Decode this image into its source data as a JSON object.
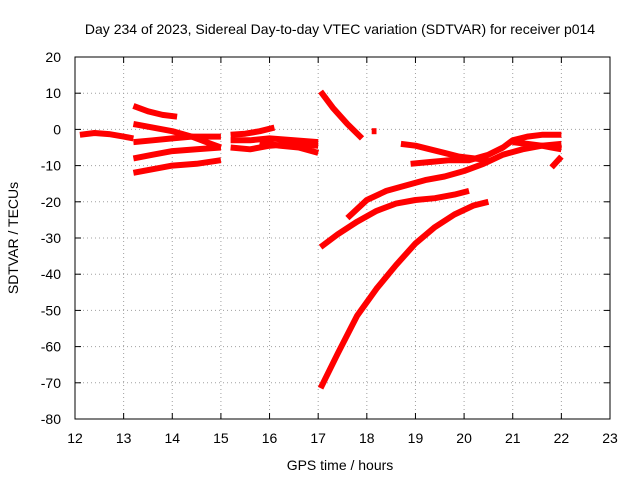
{
  "chart_data": {
    "type": "line",
    "title": "Day 234 of 2023, Sidereal Day-to-day VTEC variation (SDTVAR) for receiver p014",
    "xlabel": "GPS time / hours",
    "ylabel": "SDTVAR / TECUs",
    "xlim": [
      12,
      23
    ],
    "ylim": [
      -80,
      20
    ],
    "xticks": [
      12,
      13,
      14,
      15,
      16,
      17,
      18,
      19,
      20,
      21,
      22,
      23
    ],
    "yticks": [
      20,
      10,
      0,
      -10,
      -20,
      -30,
      -40,
      -50,
      -60,
      -70,
      -80
    ],
    "grid": true,
    "color": "#ff0000",
    "series": [
      {
        "x": [
          12.1,
          12.4,
          12.7,
          13.0,
          13.2
        ],
        "y": [
          -1.5,
          -1.0,
          -1.3,
          -2.0,
          -2.5
        ]
      },
      {
        "x": [
          13.2,
          13.5,
          13.8,
          14.1
        ],
        "y": [
          6.5,
          5.0,
          4.0,
          3.5
        ]
      },
      {
        "x": [
          13.2,
          13.6,
          14.0,
          14.4,
          14.8,
          15.0
        ],
        "y": [
          1.5,
          0.5,
          -0.5,
          -2.0,
          -4.0,
          -5.0
        ]
      },
      {
        "x": [
          13.2,
          13.6,
          14.0,
          14.4,
          15.0
        ],
        "y": [
          -3.5,
          -3.0,
          -2.5,
          -2.0,
          -2.0
        ]
      },
      {
        "x": [
          13.2,
          13.6,
          14.0,
          14.5,
          15.0
        ],
        "y": [
          -8.0,
          -7.0,
          -6.0,
          -5.5,
          -5.0
        ]
      },
      {
        "x": [
          13.2,
          13.6,
          14.0,
          14.5,
          15.0
        ],
        "y": [
          -12.0,
          -11.0,
          -10.0,
          -9.5,
          -8.5
        ]
      },
      {
        "x": [
          15.2,
          15.5,
          15.8,
          16.1
        ],
        "y": [
          -1.5,
          -1.2,
          -0.5,
          0.5
        ]
      },
      {
        "x": [
          15.2,
          15.6,
          16.0,
          16.5,
          17.0
        ],
        "y": [
          -3.0,
          -3.0,
          -2.5,
          -3.0,
          -3.5
        ]
      },
      {
        "x": [
          15.2,
          15.6,
          16.0,
          16.5,
          17.0
        ],
        "y": [
          -5.0,
          -5.5,
          -4.5,
          -4.0,
          -4.5
        ]
      },
      {
        "x": [
          15.8,
          16.2,
          16.6,
          17.0
        ],
        "y": [
          -3.5,
          -4.5,
          -5.0,
          -6.5
        ]
      },
      {
        "x": [
          17.05,
          17.3,
          17.6,
          17.9
        ],
        "y": [
          10.5,
          6.0,
          1.5,
          -2.5
        ]
      },
      {
        "x": [
          18.1,
          18.2
        ],
        "y": [
          -0.5,
          -0.5
        ]
      },
      {
        "x": [
          18.7,
          19.0,
          19.3,
          19.6,
          19.9,
          20.2,
          20.5
        ],
        "y": [
          -4.0,
          -4.5,
          -5.5,
          -6.5,
          -7.5,
          -8.0,
          -8.5
        ]
      },
      {
        "x": [
          18.9,
          19.3,
          19.7,
          20.1,
          20.5,
          20.8,
          21.0,
          21.3,
          21.6,
          21.9,
          22.0
        ],
        "y": [
          -9.5,
          -9.0,
          -8.5,
          -8.5,
          -7.0,
          -5.0,
          -3.0,
          -2.0,
          -1.5,
          -1.5,
          -1.5
        ]
      },
      {
        "x": [
          17.6,
          18.0,
          18.4,
          18.8,
          19.2,
          19.6,
          20.0,
          20.4,
          20.8,
          21.2,
          21.6,
          22.0
        ],
        "y": [
          -24.5,
          -19.5,
          -17.0,
          -15.5,
          -14.0,
          -13.0,
          -11.5,
          -9.5,
          -7.0,
          -5.5,
          -4.5,
          -4.0
        ]
      },
      {
        "x": [
          21.0,
          21.3,
          21.6,
          21.8,
          22.0
        ],
        "y": [
          -3.5,
          -4.0,
          -4.5,
          -5.0,
          -5.5
        ]
      },
      {
        "x": [
          17.05,
          17.4,
          17.8,
          18.2,
          18.6,
          19.0,
          19.4,
          19.8,
          20.1
        ],
        "y": [
          -32.5,
          -29.0,
          -25.5,
          -22.5,
          -20.5,
          -19.5,
          -19.0,
          -18.0,
          -17.0
        ]
      },
      {
        "x": [
          17.05,
          17.4,
          17.8,
          18.2,
          18.6,
          19.0,
          19.4,
          19.8,
          20.2,
          20.5
        ],
        "y": [
          -71.5,
          -62.0,
          -51.5,
          -44.0,
          -37.5,
          -31.5,
          -27.0,
          -23.5,
          -21.0,
          -20.0
        ]
      },
      {
        "x": [
          21.8,
          22.0
        ],
        "y": [
          -10.5,
          -7.5
        ]
      }
    ]
  }
}
